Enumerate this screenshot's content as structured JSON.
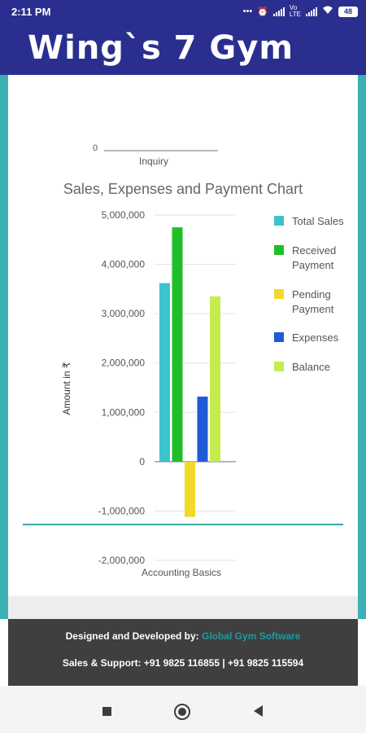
{
  "status_bar": {
    "time": "2:11 PM",
    "battery": "48",
    "icons": [
      "dots-icon",
      "alarm-icon",
      "signal-icon",
      "volte-icon",
      "signal-icon",
      "wifi-icon",
      "battery-icon"
    ]
  },
  "app": {
    "title": "Wing`s 7 Gym",
    "header_color": "#2a2f8f",
    "accent": "#3cb0b4"
  },
  "previous_chart": {
    "category_label": "Inquiry",
    "zero_tick": "0"
  },
  "chart_data": {
    "type": "bar",
    "title": "Sales, Expenses and Payment Chart",
    "ylabel": "Amount in ₹",
    "categories": [
      "Accounting Basics"
    ],
    "ylim": [
      -2000000,
      5000000
    ],
    "yticks": [
      5000000,
      4000000,
      3000000,
      2000000,
      1000000,
      0,
      -1000000,
      -2000000
    ],
    "ytick_labels": [
      "5,000,000",
      "4,000,000",
      "3,000,000",
      "2,000,000",
      "1,000,000",
      "0",
      "-1,000,000",
      "-2,000,000"
    ],
    "grid": true,
    "legend_position": "right",
    "series": [
      {
        "name": "Total Sales",
        "values": [
          3620000
        ],
        "color": "#3cc3cd"
      },
      {
        "name": "Received Payment",
        "values": [
          4750000
        ],
        "color": "#1fbf2a"
      },
      {
        "name": "Pending Payment",
        "values": [
          -1120000
        ],
        "color": "#f2d92a"
      },
      {
        "name": "Expenses",
        "values": [
          1320000
        ],
        "color": "#1f5bd6"
      },
      {
        "name": "Balance",
        "values": [
          3350000
        ],
        "color": "#c5ec4f"
      }
    ]
  },
  "footer": {
    "designed_label": "Designed and Developed by:",
    "developer_link": "Global Gym Software",
    "support_text": "Sales & Support: +91 9825 116855 | +91 9825 115594",
    "link_color": "#1f9a9d"
  },
  "nav": {
    "recents": "recents-icon",
    "home": "home-icon",
    "back": "back-icon"
  }
}
